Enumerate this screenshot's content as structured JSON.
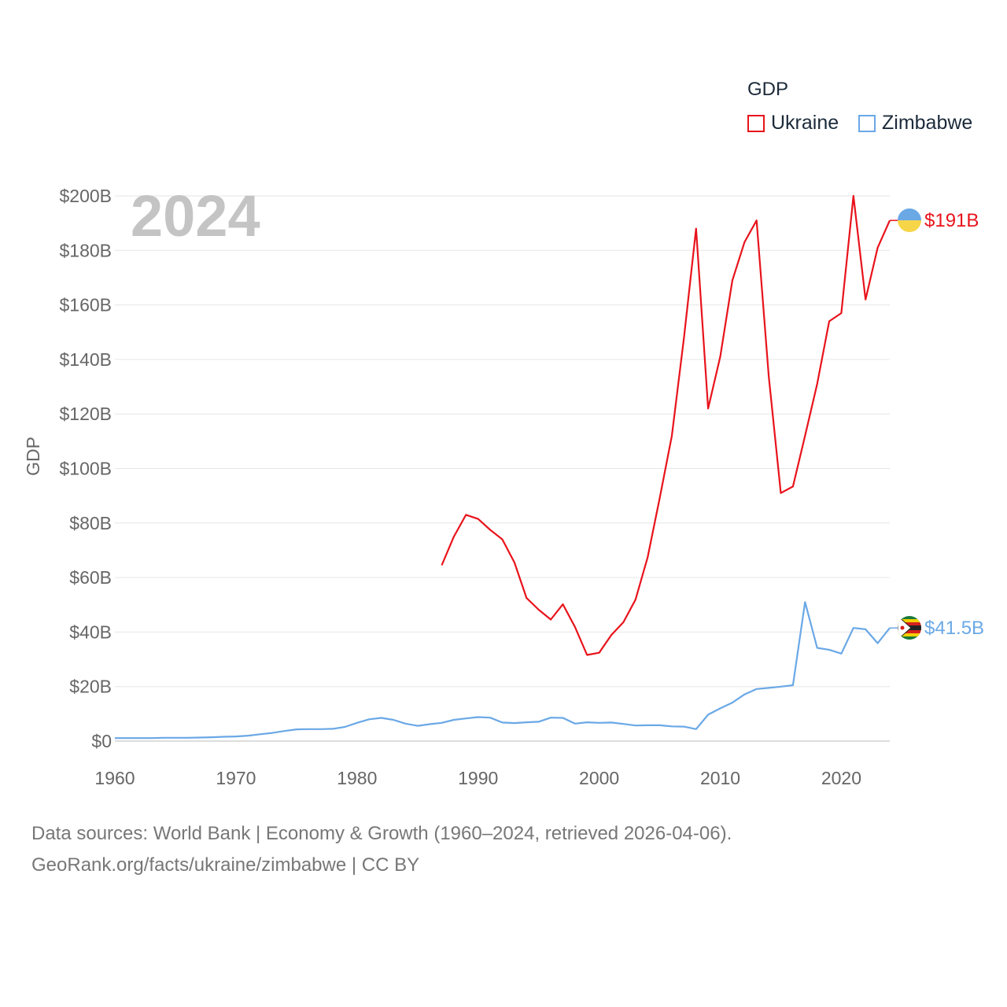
{
  "chart_data": {
    "type": "line",
    "year_label": "2024",
    "ylabel": "GDP",
    "xlim": [
      1960,
      2024
    ],
    "ylim": [
      0,
      200
    ],
    "x_ticks": [
      "1960",
      "1970",
      "1980",
      "1990",
      "2000",
      "2010",
      "2020"
    ],
    "x_tick_values": [
      1960,
      1970,
      1980,
      1990,
      2000,
      2010,
      2020
    ],
    "y_ticks": [
      "$0",
      "$20B",
      "$40B",
      "$60B",
      "$80B",
      "$100B",
      "$120B",
      "$140B",
      "$160B",
      "$180B",
      "$200B"
    ],
    "y_tick_values": [
      0,
      20,
      40,
      60,
      80,
      100,
      120,
      140,
      160,
      180,
      200
    ],
    "legend": {
      "title": "GDP",
      "items": [
        "Ukraine",
        "Zimbabwe"
      ]
    },
    "series": [
      {
        "name": "Ukraine",
        "color": "#e8131b",
        "end_label": "$191B",
        "x": [
          1987,
          1988,
          1989,
          1990,
          1991,
          1992,
          1993,
          1994,
          1995,
          1996,
          1997,
          1998,
          1999,
          2000,
          2001,
          2002,
          2003,
          2004,
          2005,
          2006,
          2007,
          2008,
          2009,
          2010,
          2011,
          2012,
          2013,
          2014,
          2015,
          2016,
          2017,
          2018,
          2019,
          2020,
          2021,
          2022,
          2023,
          2024
        ],
        "values": [
          64.5,
          75,
          83,
          81.5,
          77.5,
          74,
          65.5,
          52.5,
          48.2,
          44.6,
          50.2,
          41.9,
          31.6,
          32.4,
          38.9,
          43.6,
          51.9,
          67.4,
          89.2,
          112,
          148,
          188,
          122,
          141,
          169,
          183,
          191,
          134,
          91,
          93.4,
          112,
          131,
          154,
          157,
          200,
          162,
          181,
          191
        ]
      },
      {
        "name": "Zimbabwe",
        "color": "#6aa8e6",
        "end_label": "$41.5B",
        "x": [
          1960,
          1961,
          1962,
          1963,
          1964,
          1965,
          1966,
          1967,
          1968,
          1969,
          1970,
          1971,
          1972,
          1973,
          1974,
          1975,
          1976,
          1977,
          1978,
          1979,
          1980,
          1981,
          1982,
          1983,
          1984,
          1985,
          1986,
          1987,
          1988,
          1989,
          1990,
          1991,
          1992,
          1993,
          1994,
          1995,
          1996,
          1997,
          1998,
          1999,
          2000,
          2001,
          2002,
          2003,
          2004,
          2005,
          2006,
          2007,
          2008,
          2009,
          2010,
          2011,
          2012,
          2013,
          2014,
          2015,
          2016,
          2017,
          2018,
          2019,
          2020,
          2021,
          2022,
          2023,
          2024
        ],
        "values": [
          1.1,
          1.1,
          1.1,
          1.1,
          1.2,
          1.2,
          1.2,
          1.3,
          1.4,
          1.6,
          1.7,
          2.0,
          2.5,
          3.0,
          3.7,
          4.3,
          4.4,
          4.4,
          4.5,
          5.2,
          6.7,
          8.0,
          8.5,
          7.8,
          6.4,
          5.6,
          6.2,
          6.7,
          7.8,
          8.3,
          8.8,
          8.6,
          6.8,
          6.6,
          6.9,
          7.1,
          8.6,
          8.5,
          6.4,
          6.9,
          6.7,
          6.8,
          6.3,
          5.7,
          5.8,
          5.8,
          5.4,
          5.3,
          4.4,
          9.7,
          12.0,
          14.1,
          17.1,
          19.1,
          19.5,
          19.96,
          20.5,
          51.0,
          34.2,
          33.5,
          32.1,
          41.5,
          41.0,
          35.9,
          41.5
        ]
      }
    ]
  },
  "source": {
    "line1": "Data sources: World Bank | Economy & Growth (1960–2024, retrieved 2026-04-06).",
    "line2": "GeoRank.org/facts/ukraine/zimbabwe | CC BY"
  }
}
